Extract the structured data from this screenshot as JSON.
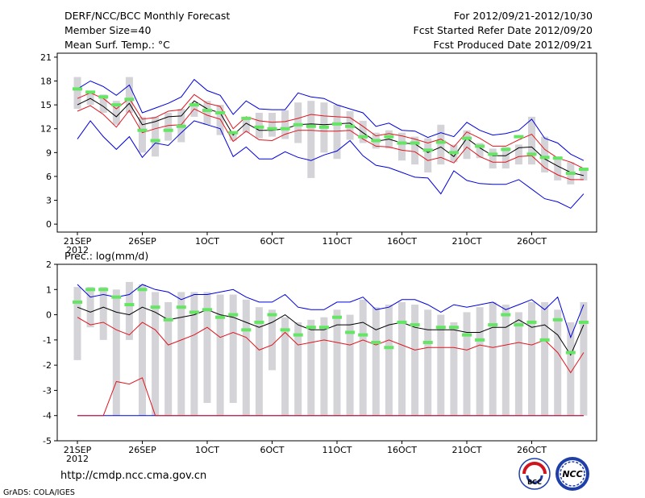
{
  "header": {
    "title": "DERF/NCC/BCC Monthly Forecast",
    "member_size": "Member Size=40",
    "variable": "Mean Surf. Temp.: °C",
    "period": "For 2012/09/21-2012/10/30",
    "fcst_started": "Fcst Started Refer Date 2012/09/20",
    "fcst_produced": "Fcst Produced Date 2012/09/21"
  },
  "footer": {
    "url": "http://cmdp.ncc.cma.gov.cn",
    "credit": "GrADS: COLA/IGES",
    "logo_bcc": "BCC",
    "logo_ncc": "NCC"
  },
  "colors": {
    "envelope": "#0000dd",
    "lower": "#e0141e",
    "mean": "#000000",
    "box": "#d4d4d8",
    "obs": "#64e664"
  },
  "chart_data": [
    {
      "type": "line",
      "title": "Mean Surf. Temp.: °C",
      "x_tick_labels": [
        "21SEP",
        "26SEP",
        "1OCT",
        "6OCT",
        "11OCT",
        "16OCT",
        "21OCT",
        "26OCT"
      ],
      "x_year_label": "2012",
      "x_tick_days": [
        1,
        6,
        11,
        16,
        21,
        26,
        31,
        36
      ],
      "days": [
        1,
        2,
        3,
        4,
        5,
        6,
        7,
        8,
        9,
        10,
        11,
        12,
        13,
        14,
        15,
        16,
        17,
        18,
        19,
        20,
        21,
        22,
        23,
        24,
        25,
        26,
        27,
        28,
        29,
        30,
        31,
        32,
        33,
        34,
        35,
        36,
        37,
        38,
        39,
        40
      ],
      "ylim": [
        -1,
        21.5
      ],
      "y_ticks": [
        0,
        3,
        6,
        9,
        12,
        15,
        18,
        21
      ],
      "series": [
        {
          "name": "max",
          "values": [
            17,
            18,
            17.3,
            16.2,
            17.5,
            14,
            14.6,
            15.2,
            16,
            18.2,
            16.8,
            16.2,
            13.8,
            15.5,
            14.5,
            14.4,
            14.4,
            16.5,
            16,
            15.8,
            15,
            14.5,
            14,
            12.3,
            12.7,
            11.8,
            11.7,
            10.9,
            11.5,
            11,
            12.8,
            11.8,
            11.2,
            11.4,
            11.8,
            13.2,
            10.8,
            10.2,
            8.8,
            8
          ]
        },
        {
          "name": "upper",
          "values": [
            15.8,
            16.5,
            15.8,
            14.5,
            15.8,
            13.2,
            13.4,
            14.2,
            14.4,
            16.3,
            15.2,
            14.8,
            12,
            13.5,
            13,
            12.8,
            12.9,
            13.3,
            13.8,
            13.6,
            13.5,
            13.4,
            12.3,
            11.1,
            11.4,
            11.1,
            10.7,
            10.2,
            10.7,
            9.7,
            11.6,
            10.8,
            9.8,
            9.8,
            10.6,
            11.3,
            9.4,
            8.3,
            7.8,
            7
          ]
        },
        {
          "name": "mean",
          "values": [
            15,
            15.8,
            14.8,
            13.5,
            15.2,
            12.5,
            12.9,
            13.5,
            13.6,
            15.5,
            14.5,
            14,
            11.2,
            12.7,
            11.8,
            11.8,
            12,
            12.5,
            12.6,
            12.5,
            12.6,
            12.7,
            11.5,
            10.4,
            10.7,
            10.2,
            10.1,
            9,
            9.7,
            8.5,
            10.8,
            9.6,
            8.6,
            8.6,
            9.6,
            9.7,
            8.2,
            7.3,
            6.5,
            6.1
          ]
        },
        {
          "name": "lower",
          "values": [
            14.2,
            14.9,
            13.8,
            12.2,
            14.3,
            11.5,
            12,
            12.4,
            12.5,
            14.5,
            13.7,
            13.2,
            10.4,
            11.7,
            10.6,
            10.5,
            11.3,
            11.8,
            11.8,
            11.7,
            11.7,
            11.8,
            10.7,
            9.8,
            9.7,
            9.3,
            9.1,
            8,
            8.4,
            7.7,
            9.7,
            8.5,
            7.8,
            7.8,
            8.5,
            8.6,
            7.1,
            6.2,
            5.6,
            5.6
          ]
        },
        {
          "name": "min",
          "values": [
            10.7,
            13,
            11,
            9.4,
            11,
            8.4,
            10.2,
            9.9,
            11.5,
            13,
            12.5,
            12,
            8.5,
            9.7,
            8.2,
            8.2,
            9.1,
            8.4,
            8,
            8.7,
            9.2,
            10.5,
            8.6,
            7.4,
            7.1,
            6.5,
            5.9,
            5.8,
            3.8,
            6.7,
            5.5,
            5.1,
            5,
            5,
            5.6,
            4.4,
            3.2,
            2.8,
            2,
            3.8
          ]
        },
        {
          "name": "box_top",
          "values": [
            18.5,
            16.5,
            16.3,
            15.5,
            18.5,
            13.5,
            13.5,
            14,
            14.5,
            15.3,
            15.5,
            15,
            11.5,
            13.5,
            14,
            14,
            14.3,
            15.3,
            15.5,
            15.3,
            15,
            14.2,
            13,
            11.5,
            11.8,
            11.5,
            11,
            10.8,
            12.5,
            10,
            11.8,
            10.2,
            9.5,
            9.7,
            10,
            13.5,
            11,
            8.5,
            7.8,
            7
          ]
        },
        {
          "name": "box_bottom",
          "values": [
            14.5,
            15,
            14,
            12.5,
            14,
            9,
            8.5,
            10.5,
            10.3,
            13.5,
            12.5,
            11.2,
            10.5,
            11.5,
            10.8,
            11,
            10.7,
            10.2,
            5.8,
            9,
            8.2,
            10.6,
            10.2,
            9.5,
            9.5,
            8,
            7.5,
            6.5,
            7.5,
            7.8,
            8.2,
            8.3,
            7,
            7,
            7.5,
            7.5,
            6.5,
            5.5,
            5,
            5.5
          ]
        },
        {
          "name": "obs",
          "values": [
            17,
            16.6,
            16,
            15,
            15.7,
            11.8,
            10.5,
            11.8,
            12.3,
            15,
            14.3,
            14,
            11.5,
            13.3,
            12.2,
            12,
            12,
            12.5,
            12.3,
            12.2,
            12.6,
            12.3,
            11,
            10.5,
            11,
            10.2,
            10.2,
            9.3,
            10.3,
            9,
            10.8,
            9.8,
            8.8,
            9.4,
            11,
            8.8,
            8.4,
            8.3,
            6.4,
            6.9
          ]
        }
      ]
    },
    {
      "type": "line",
      "title": "Prec.: log(mm/d)",
      "x_tick_labels": [
        "21SEP",
        "26SEP",
        "1OCT",
        "6OCT",
        "11OCT",
        "16OCT",
        "21OCT",
        "26OCT"
      ],
      "x_year_label": "2012",
      "x_tick_days": [
        1,
        6,
        11,
        16,
        21,
        26,
        31,
        36
      ],
      "days": [
        1,
        2,
        3,
        4,
        5,
        6,
        7,
        8,
        9,
        10,
        11,
        12,
        13,
        14,
        15,
        16,
        17,
        18,
        19,
        20,
        21,
        22,
        23,
        24,
        25,
        26,
        27,
        28,
        29,
        30,
        31,
        32,
        33,
        34,
        35,
        36,
        37,
        38,
        39,
        40
      ],
      "ylim": [
        -5,
        2
      ],
      "y_ticks": [
        -5,
        -4,
        -3,
        -2,
        -1,
        0,
        1,
        2
      ],
      "series": [
        {
          "name": "max",
          "values": [
            1.2,
            0.7,
            0.8,
            0.7,
            0.8,
            1.2,
            1,
            0.9,
            0.6,
            0.8,
            0.8,
            0.9,
            1,
            0.7,
            0.5,
            0.5,
            0.8,
            0.3,
            0.2,
            0.2,
            0.5,
            0.5,
            0.7,
            0.2,
            0.3,
            0.6,
            0.6,
            0.4,
            0.1,
            0.4,
            0.3,
            0.4,
            0.5,
            0.2,
            0.4,
            0.6,
            0.2,
            0.7,
            -0.9,
            0.4
          ]
        },
        {
          "name": "mean",
          "values": [
            0.3,
            0.1,
            0.3,
            0.1,
            0,
            0.3,
            0.1,
            -0.2,
            -0.1,
            0,
            0.2,
            0,
            -0.1,
            -0.3,
            -0.5,
            -0.3,
            0,
            -0.4,
            -0.6,
            -0.6,
            -0.4,
            -0.4,
            -0.3,
            -0.6,
            -0.4,
            -0.3,
            -0.5,
            -0.6,
            -0.6,
            -0.6,
            -0.7,
            -0.7,
            -0.5,
            -0.5,
            -0.2,
            -0.5,
            -0.4,
            -0.8,
            -1.6,
            -0.4
          ]
        },
        {
          "name": "lower",
          "values": [
            -0.1,
            -0.4,
            -0.3,
            -0.6,
            -0.8,
            -0.3,
            -0.6,
            -1.2,
            -1,
            -0.8,
            -0.5,
            -0.9,
            -0.7,
            -0.9,
            -1.4,
            -1.2,
            -0.7,
            -1.2,
            -1.1,
            -1,
            -1.1,
            -1.2,
            -1,
            -1.2,
            -1,
            -1.2,
            -1.4,
            -1.3,
            -1.3,
            -1.3,
            -1.4,
            -1.2,
            -1.3,
            -1.2,
            -1.1,
            -1.2,
            -1,
            -1.5,
            -2.3,
            -1.5
          ]
        },
        {
          "name": "min",
          "values": [
            -4,
            -4,
            -4,
            -4,
            -4,
            -4,
            -4,
            -4,
            -4,
            -4,
            -4,
            -4,
            -4,
            -4,
            -4,
            -4,
            -4,
            -4,
            -4,
            -4,
            -4,
            -4,
            -4,
            -4,
            -4,
            -4,
            -4,
            -4,
            -4,
            -4,
            -4,
            -4,
            -4,
            -4,
            -4,
            -4,
            -4,
            -4,
            -4,
            -4
          ]
        },
        {
          "name": "min_red",
          "values": [
            -4,
            -4,
            -4,
            -2.65,
            -2.75,
            -2.5,
            -4,
            -4,
            -4,
            -4,
            -4,
            -4,
            -4,
            -4,
            -4,
            -4,
            -4,
            -4,
            -4,
            -4,
            -4,
            -4,
            -4,
            -4,
            -4,
            -4,
            -4,
            -4,
            -4,
            -4,
            -4,
            -4,
            -4,
            -4,
            -4,
            -4,
            -4,
            -4,
            -4,
            -4
          ]
        },
        {
          "name": "box_top",
          "values": [
            1.1,
            1.1,
            1.1,
            1,
            1.3,
            1.2,
            0.9,
            0.5,
            0.9,
            0.9,
            0.9,
            0.8,
            0.8,
            0.6,
            0.3,
            0.2,
            -0.1,
            -0.3,
            -0.2,
            -0.1,
            0.2,
            0,
            0.6,
            0.3,
            0.4,
            0.5,
            0.4,
            0.2,
            0,
            -0.3,
            0.1,
            0.3,
            0.5,
            0.4,
            0.1,
            0.5,
            0.5,
            0.2,
            -0.3,
            0.5
          ]
        },
        {
          "name": "box_bottom",
          "values": [
            -1.8,
            -0.5,
            -1,
            -4,
            -1,
            -4,
            -4,
            -4,
            -4,
            -4,
            -3.5,
            -4,
            -3.5,
            -4,
            -4,
            -2.2,
            -4,
            -4,
            -4,
            -4,
            -4,
            -4,
            -4,
            -4,
            -4,
            -4,
            -4,
            -4,
            -4,
            -4,
            -4,
            -4,
            -4,
            -4,
            -4,
            -4,
            -4,
            -4,
            -4,
            -4
          ]
        },
        {
          "name": "obs",
          "values": [
            0.5,
            1,
            1,
            0.7,
            0.4,
            1,
            0.3,
            -0.2,
            0.3,
            0.1,
            0.2,
            -0.1,
            0,
            -0.6,
            -0.3,
            0,
            -0.6,
            -0.8,
            -0.5,
            -0.5,
            -0.1,
            -0.7,
            -0.8,
            -1.1,
            -1.3,
            -0.3,
            -0.4,
            -1.1,
            -0.5,
            -0.5,
            -0.8,
            -1,
            -0.4,
            0,
            -0.4,
            -0.3,
            -1,
            -0.2,
            -1.5,
            -0.3
          ]
        }
      ]
    }
  ]
}
